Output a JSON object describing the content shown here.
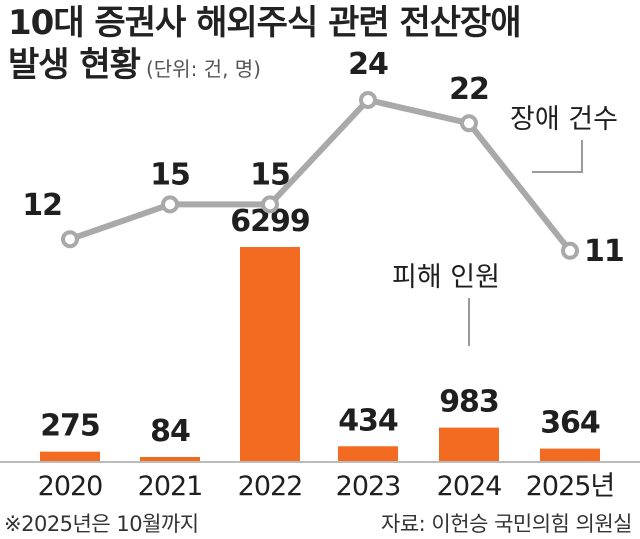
{
  "title_line1": "10대 증권사 해외주식 관련 전산장애",
  "title_line2": "발생 현황",
  "unit": "(단위: 건, 명)",
  "footnote": "※2025년은 10월까지",
  "source": "자료: 이헌승 국민의힘 의원실",
  "colors": {
    "bar": "#f26b21",
    "line": "#a9a9a9",
    "text": "#1f1f1f"
  },
  "chart_data": {
    "type": "bar+line",
    "categories": [
      "2020",
      "2021",
      "2022",
      "2023",
      "2024",
      "2025년"
    ],
    "series": [
      {
        "name": "장애 건수",
        "type": "line",
        "values": [
          12,
          15,
          15,
          24,
          22,
          11
        ]
      },
      {
        "name": "피해 인원",
        "type": "bar",
        "values": [
          275,
          84,
          6299,
          434,
          983,
          364
        ]
      }
    ],
    "legend_placement": "inline-callout",
    "grid": false
  }
}
